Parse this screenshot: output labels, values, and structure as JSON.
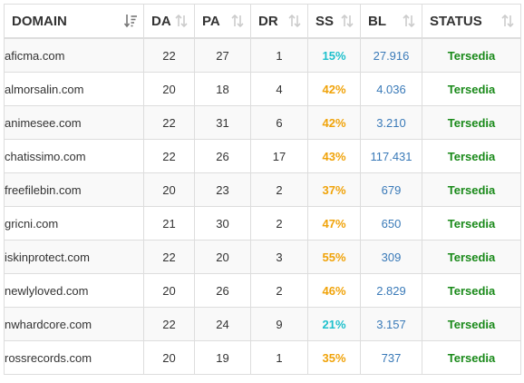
{
  "columns": [
    {
      "key": "domain",
      "label": "DOMAIN",
      "sort_icon": "sort-active-icon"
    },
    {
      "key": "da",
      "label": "DA",
      "sort_icon": "sort-icon"
    },
    {
      "key": "pa",
      "label": "PA",
      "sort_icon": "sort-icon"
    },
    {
      "key": "dr",
      "label": "DR",
      "sort_icon": "sort-icon"
    },
    {
      "key": "ss",
      "label": "SS",
      "sort_icon": "sort-icon"
    },
    {
      "key": "bl",
      "label": "BL",
      "sort_icon": "sort-icon"
    },
    {
      "key": "status",
      "label": "STATUS",
      "sort_icon": "sort-icon"
    }
  ],
  "colors": {
    "ss_low": "#1ec0cc",
    "ss_mid": "#f0a30a",
    "bl": "#3a7ab8",
    "status": "#1a8a1a"
  },
  "rows": [
    {
      "domain": "aficma.com",
      "da": "22",
      "pa": "27",
      "dr": "1",
      "ss": "15%",
      "ss_color": "#1ec0cc",
      "bl": "27.916",
      "status": "Tersedia"
    },
    {
      "domain": "almorsalin.com",
      "da": "20",
      "pa": "18",
      "dr": "4",
      "ss": "42%",
      "ss_color": "#f0a30a",
      "bl": "4.036",
      "status": "Tersedia"
    },
    {
      "domain": "animesee.com",
      "da": "22",
      "pa": "31",
      "dr": "6",
      "ss": "42%",
      "ss_color": "#f0a30a",
      "bl": "3.210",
      "status": "Tersedia"
    },
    {
      "domain": "chatissimo.com",
      "da": "22",
      "pa": "26",
      "dr": "17",
      "ss": "43%",
      "ss_color": "#f0a30a",
      "bl": "117.431",
      "status": "Tersedia"
    },
    {
      "domain": "freefilebin.com",
      "da": "20",
      "pa": "23",
      "dr": "2",
      "ss": "37%",
      "ss_color": "#f0a30a",
      "bl": "679",
      "status": "Tersedia"
    },
    {
      "domain": "gricni.com",
      "da": "21",
      "pa": "30",
      "dr": "2",
      "ss": "47%",
      "ss_color": "#f0a30a",
      "bl": "650",
      "status": "Tersedia"
    },
    {
      "domain": "iskinprotect.com",
      "da": "22",
      "pa": "20",
      "dr": "3",
      "ss": "55%",
      "ss_color": "#f0a30a",
      "bl": "309",
      "status": "Tersedia"
    },
    {
      "domain": "newlyloved.com",
      "da": "20",
      "pa": "26",
      "dr": "2",
      "ss": "46%",
      "ss_color": "#f0a30a",
      "bl": "2.829",
      "status": "Tersedia"
    },
    {
      "domain": "nwhardcore.com",
      "da": "22",
      "pa": "24",
      "dr": "9",
      "ss": "21%",
      "ss_color": "#1ec0cc",
      "bl": "3.157",
      "status": "Tersedia"
    },
    {
      "domain": "rossrecords.com",
      "da": "20",
      "pa": "19",
      "dr": "1",
      "ss": "35%",
      "ss_color": "#f0a30a",
      "bl": "737",
      "status": "Tersedia"
    }
  ]
}
